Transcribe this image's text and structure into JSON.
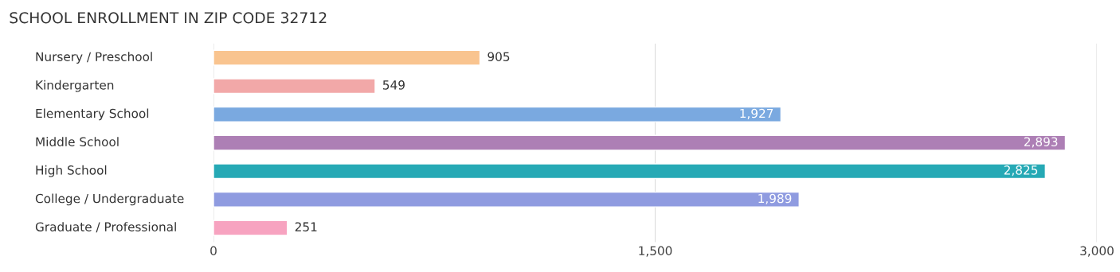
{
  "chart_data": {
    "type": "bar",
    "orientation": "horizontal",
    "title": "SCHOOL ENROLLMENT IN ZIP CODE 32712",
    "categories": [
      "Nursery / Preschool",
      "Kindergarten",
      "Elementary School",
      "Middle School",
      "High School",
      "College / Undergraduate",
      "Graduate / Professional"
    ],
    "values": [
      905,
      549,
      1927,
      2893,
      2825,
      1989,
      251
    ],
    "colors": [
      "#f9c48f",
      "#f2a8a8",
      "#7aa9e0",
      "#ad7fb5",
      "#26a9b5",
      "#8f9be0",
      "#f7a3c0"
    ],
    "value_labels": [
      "905",
      "549",
      "1,927",
      "2,893",
      "2,825",
      "1,989",
      "251"
    ],
    "xlim": [
      0,
      3000
    ],
    "xticks": [
      0,
      {
        "value": 1500,
        "label": "1,500"
      },
      {
        "value": 3000,
        "label": "3,000"
      }
    ],
    "grid": "x"
  }
}
